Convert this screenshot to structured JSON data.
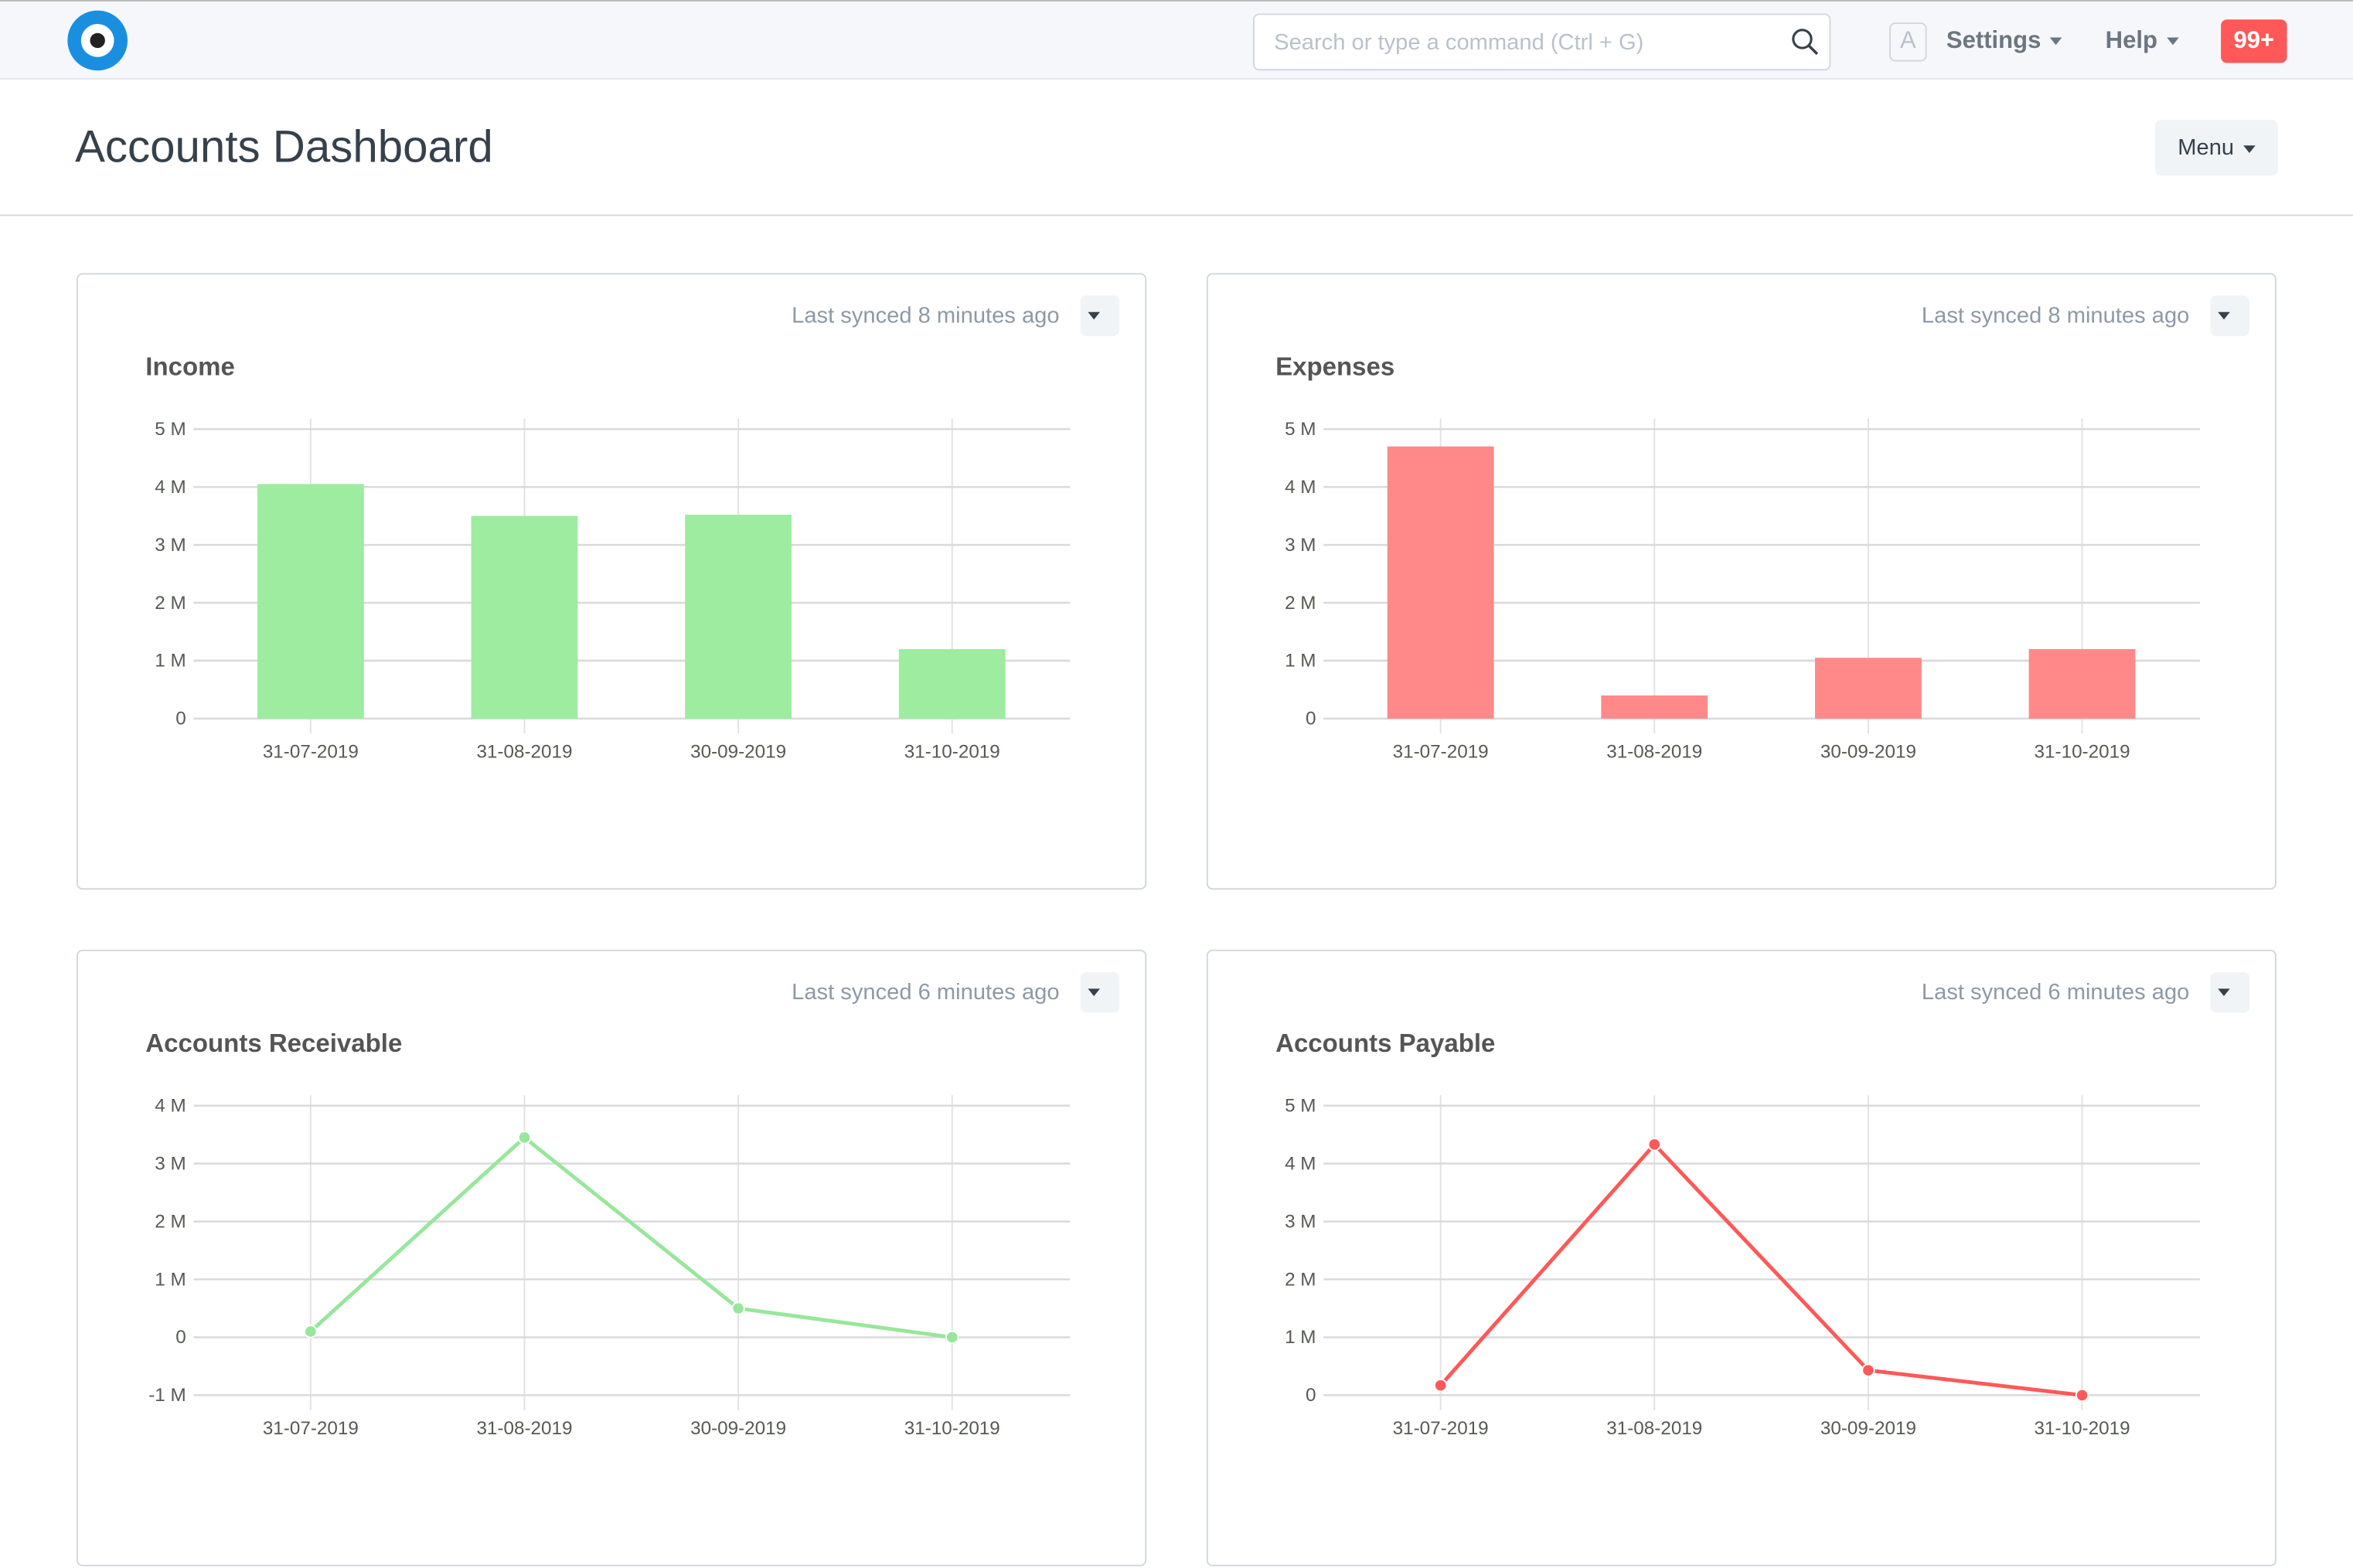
{
  "navbar": {
    "search_placeholder": "Search or type a command (Ctrl + G)",
    "avatar_letter": "A",
    "settings_label": "Settings",
    "help_label": "Help",
    "notifications_badge": "99+"
  },
  "page": {
    "title": "Accounts Dashboard",
    "menu_label": "Menu"
  },
  "colors": {
    "green": "#9deca0",
    "green_line": "#98e69b",
    "red": "#ff8989",
    "red_line": "#ff5858",
    "badge": "#ff5858",
    "logo": "#1a8fe0"
  },
  "cards": [
    {
      "title": "Income",
      "synced": "Last synced 8 minutes ago"
    },
    {
      "title": "Expenses",
      "synced": "Last synced 8 minutes ago"
    },
    {
      "title": "Accounts Receivable",
      "synced": "Last synced 6 minutes ago"
    },
    {
      "title": "Accounts Payable",
      "synced": "Last synced 6 minutes ago"
    }
  ],
  "chart_data": [
    {
      "type": "bar",
      "title": "Income",
      "categories": [
        "31-07-2019",
        "31-08-2019",
        "30-09-2019",
        "31-10-2019"
      ],
      "values": [
        4.05,
        3.5,
        3.52,
        1.2
      ],
      "unit": "M",
      "ylim": [
        0,
        5
      ],
      "yticks": [
        "0",
        "1 M",
        "2 M",
        "3 M",
        "4 M",
        "5 M"
      ],
      "grid": true,
      "color": "#9deca0"
    },
    {
      "type": "bar",
      "title": "Expenses",
      "categories": [
        "31-07-2019",
        "31-08-2019",
        "30-09-2019",
        "31-10-2019"
      ],
      "values": [
        4.7,
        0.4,
        1.05,
        1.2
      ],
      "unit": "M",
      "ylim": [
        0,
        5
      ],
      "yticks": [
        "0",
        "1 M",
        "2 M",
        "3 M",
        "4 M",
        "5 M"
      ],
      "grid": true,
      "color": "#ff8989"
    },
    {
      "type": "line",
      "title": "Accounts Receivable",
      "categories": [
        "31-07-2019",
        "31-08-2019",
        "30-09-2019",
        "31-10-2019"
      ],
      "values": [
        0.1,
        3.45,
        0.5,
        0
      ],
      "unit": "M",
      "ylim": [
        -1,
        4
      ],
      "yticks": [
        "-1 M",
        "0",
        "1 M",
        "2 M",
        "3 M",
        "4 M"
      ],
      "grid": true,
      "color": "#98e69b"
    },
    {
      "type": "line",
      "title": "Accounts Payable",
      "categories": [
        "31-07-2019",
        "31-08-2019",
        "30-09-2019",
        "31-10-2019"
      ],
      "values": [
        0.17,
        4.33,
        0.43,
        0
      ],
      "unit": "M",
      "ylim": [
        0,
        5
      ],
      "yticks": [
        "0",
        "1 M",
        "2 M",
        "3 M",
        "4 M",
        "5 M"
      ],
      "grid": true,
      "color": "#ff5858"
    }
  ]
}
